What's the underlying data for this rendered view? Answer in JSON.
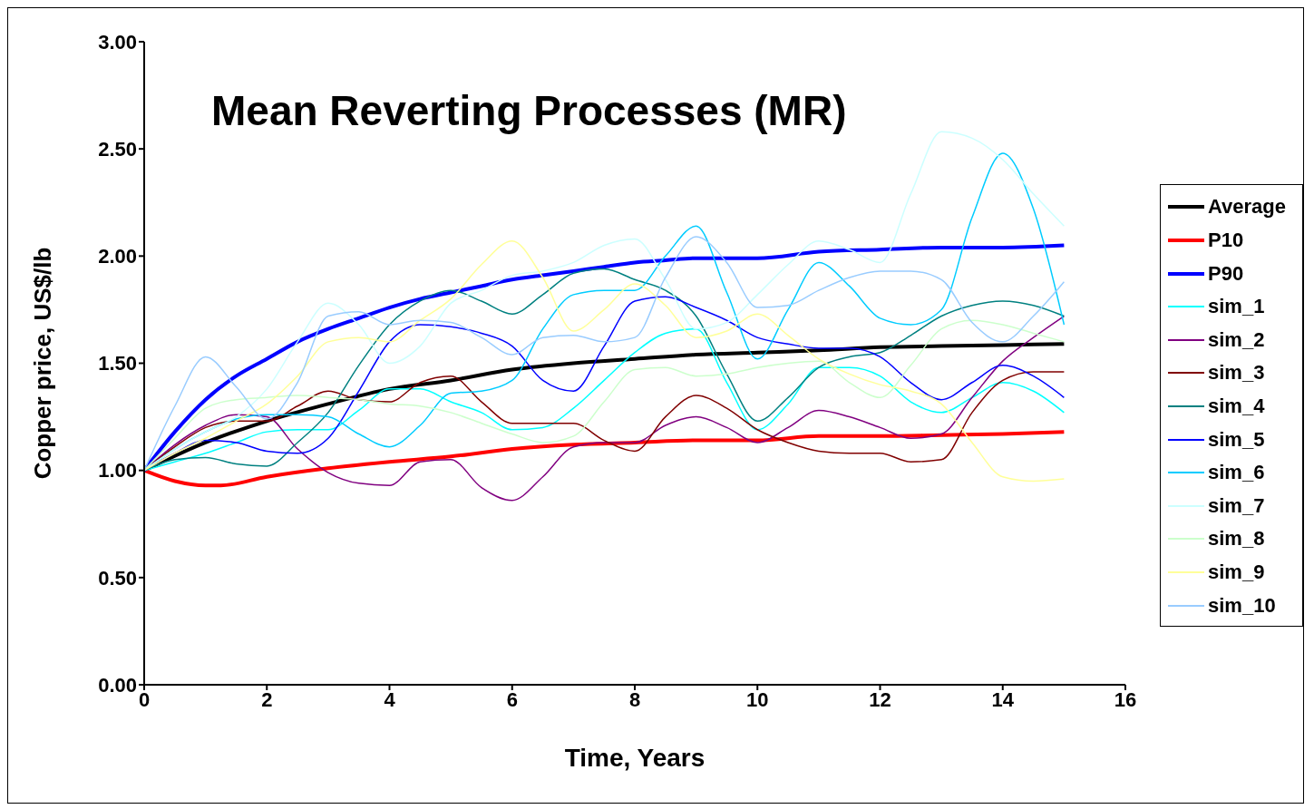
{
  "chart_data": {
    "type": "line",
    "title": "Mean Reverting Processes (MR)",
    "xlabel": "Time, Years",
    "ylabel": "Copper price, US$/lb",
    "x": [
      0,
      0.5,
      1,
      1.5,
      2,
      2.5,
      3,
      3.5,
      4,
      4.5,
      5,
      5.5,
      6,
      6.5,
      7,
      7.5,
      8,
      8.5,
      9,
      9.5,
      10,
      10.5,
      11,
      11.5,
      12,
      12.5,
      13,
      13.5,
      14,
      14.5,
      15
    ],
    "series": [
      {
        "name": "Average",
        "color": "#000000",
        "x": [
          0,
          1,
          2,
          3,
          4,
          5,
          6,
          7,
          8,
          9,
          10,
          11,
          12,
          13,
          14,
          15
        ],
        "values": [
          1.0,
          1.13,
          1.23,
          1.31,
          1.38,
          1.42,
          1.47,
          1.5,
          1.52,
          1.54,
          1.55,
          1.56,
          1.575,
          1.58,
          1.585,
          1.59
        ]
      },
      {
        "name": "P10",
        "color": "#ff0000",
        "x": [
          0,
          0.5,
          1,
          1.25,
          2,
          3,
          4,
          5,
          6,
          7,
          8,
          9,
          10,
          11,
          12,
          13,
          14,
          15
        ],
        "values": [
          1.0,
          0.95,
          0.93,
          0.93,
          0.97,
          1.01,
          1.04,
          1.065,
          1.1,
          1.12,
          1.13,
          1.14,
          1.14,
          1.16,
          1.16,
          1.165,
          1.17,
          1.18
        ]
      },
      {
        "name": "P90",
        "color": "#0000ff",
        "x": [
          0,
          0.5,
          1,
          1.5,
          2,
          2.5,
          3,
          3.5,
          4,
          4.5,
          5,
          5.5,
          6,
          6.5,
          7,
          7.5,
          8,
          8.5,
          9,
          10,
          11,
          12,
          13,
          14,
          15
        ],
        "values": [
          1.0,
          1.18,
          1.33,
          1.44,
          1.52,
          1.6,
          1.66,
          1.71,
          1.76,
          1.8,
          1.83,
          1.86,
          1.89,
          1.91,
          1.93,
          1.95,
          1.97,
          1.98,
          1.99,
          1.99,
          2.02,
          2.03,
          2.04,
          2.04,
          2.05
        ]
      },
      {
        "name": "sim_1",
        "color": "#00ffff",
        "values": [
          1.0,
          1.04,
          1.08,
          1.13,
          1.18,
          1.19,
          1.19,
          1.28,
          1.38,
          1.38,
          1.32,
          1.27,
          1.19,
          1.2,
          1.29,
          1.42,
          1.55,
          1.64,
          1.66,
          1.41,
          1.19,
          1.31,
          1.48,
          1.48,
          1.44,
          1.32,
          1.27,
          1.34,
          1.41,
          1.37,
          1.27
        ]
      },
      {
        "name": "sim_2",
        "color": "#800080",
        "values": [
          1.0,
          1.12,
          1.21,
          1.26,
          1.25,
          1.1,
          0.99,
          0.94,
          0.93,
          1.04,
          1.05,
          0.92,
          0.86,
          0.97,
          1.11,
          1.13,
          1.13,
          1.21,
          1.25,
          1.2,
          1.13,
          1.2,
          1.28,
          1.25,
          1.2,
          1.15,
          1.17,
          1.34,
          1.51,
          1.62,
          1.72
        ]
      },
      {
        "name": "sim_3",
        "color": "#800000",
        "values": [
          1.0,
          1.11,
          1.2,
          1.23,
          1.23,
          1.3,
          1.37,
          1.33,
          1.32,
          1.41,
          1.44,
          1.32,
          1.22,
          1.22,
          1.22,
          1.14,
          1.09,
          1.25,
          1.35,
          1.29,
          1.19,
          1.13,
          1.09,
          1.08,
          1.08,
          1.04,
          1.05,
          1.27,
          1.42,
          1.46,
          1.46
        ]
      },
      {
        "name": "sim_4",
        "color": "#008080",
        "values": [
          1.0,
          1.05,
          1.06,
          1.03,
          1.02,
          1.13,
          1.27,
          1.49,
          1.68,
          1.79,
          1.84,
          1.79,
          1.73,
          1.82,
          1.92,
          1.94,
          1.89,
          1.84,
          1.72,
          1.45,
          1.23,
          1.34,
          1.48,
          1.53,
          1.55,
          1.63,
          1.72,
          1.77,
          1.79,
          1.77,
          1.72
        ]
      },
      {
        "name": "sim_5",
        "color": "#0000ff",
        "values": [
          1.0,
          1.08,
          1.14,
          1.13,
          1.09,
          1.08,
          1.15,
          1.37,
          1.6,
          1.68,
          1.67,
          1.64,
          1.58,
          1.42,
          1.37,
          1.58,
          1.79,
          1.81,
          1.76,
          1.7,
          1.62,
          1.59,
          1.57,
          1.57,
          1.53,
          1.41,
          1.33,
          1.41,
          1.49,
          1.44,
          1.34
        ]
      },
      {
        "name": "sim_6",
        "color": "#00ccff",
        "values": [
          1.0,
          1.1,
          1.18,
          1.24,
          1.26,
          1.26,
          1.25,
          1.17,
          1.11,
          1.21,
          1.36,
          1.37,
          1.42,
          1.66,
          1.82,
          1.84,
          1.84,
          2.0,
          2.14,
          1.83,
          1.52,
          1.75,
          1.97,
          1.86,
          1.71,
          1.68,
          1.75,
          2.18,
          2.48,
          2.22,
          1.68
        ]
      },
      {
        "name": "sim_7",
        "color": "#ccffff",
        "values": [
          1.0,
          1.1,
          1.18,
          1.25,
          1.38,
          1.6,
          1.78,
          1.68,
          1.5,
          1.58,
          1.78,
          1.84,
          1.91,
          1.93,
          1.97,
          2.05,
          2.08,
          1.89,
          1.66,
          1.69,
          1.82,
          1.96,
          2.07,
          2.03,
          1.97,
          2.29,
          2.58,
          2.55,
          2.45,
          2.29,
          2.14
        ]
      },
      {
        "name": "sim_8",
        "color": "#ccffcc",
        "values": [
          1.0,
          1.15,
          1.29,
          1.33,
          1.34,
          1.35,
          1.34,
          1.33,
          1.31,
          1.3,
          1.27,
          1.22,
          1.17,
          1.13,
          1.16,
          1.32,
          1.47,
          1.48,
          1.44,
          1.45,
          1.48,
          1.5,
          1.51,
          1.41,
          1.34,
          1.49,
          1.66,
          1.7,
          1.68,
          1.64,
          1.6
        ]
      },
      {
        "name": "sim_9",
        "color": "#ffff99",
        "values": [
          1.0,
          1.08,
          1.15,
          1.23,
          1.31,
          1.44,
          1.6,
          1.62,
          1.6,
          1.7,
          1.8,
          1.96,
          2.07,
          1.9,
          1.65,
          1.75,
          1.87,
          1.77,
          1.62,
          1.65,
          1.73,
          1.63,
          1.52,
          1.45,
          1.4,
          1.37,
          1.31,
          1.13,
          0.97,
          0.95,
          0.96
        ]
      },
      {
        "name": "sim_10",
        "color": "#99ccff",
        "values": [
          1.0,
          1.3,
          1.53,
          1.39,
          1.24,
          1.41,
          1.72,
          1.74,
          1.68,
          1.7,
          1.69,
          1.62,
          1.54,
          1.62,
          1.63,
          1.6,
          1.62,
          1.9,
          2.09,
          1.97,
          1.76,
          1.77,
          1.84,
          1.9,
          1.93,
          1.93,
          1.89,
          1.69,
          1.6,
          1.72,
          1.88
        ]
      }
    ],
    "xlim": [
      0,
      16
    ],
    "xticks": [
      0,
      2,
      4,
      6,
      8,
      10,
      12,
      14,
      16
    ],
    "ylim": [
      0,
      3
    ],
    "yticks": [
      {
        "value": 0,
        "label": "0.00"
      },
      {
        "value": 0.5,
        "label": "0.50"
      },
      {
        "value": 1,
        "label": "1.00"
      },
      {
        "value": 1.5,
        "label": "1.50"
      },
      {
        "value": 2,
        "label": "2.00"
      },
      {
        "value": 2.5,
        "label": "2.50"
      },
      {
        "value": 3,
        "label": "3.00"
      }
    ],
    "grid": false,
    "legend": "right",
    "marker": "none",
    "line_style": "solid"
  }
}
